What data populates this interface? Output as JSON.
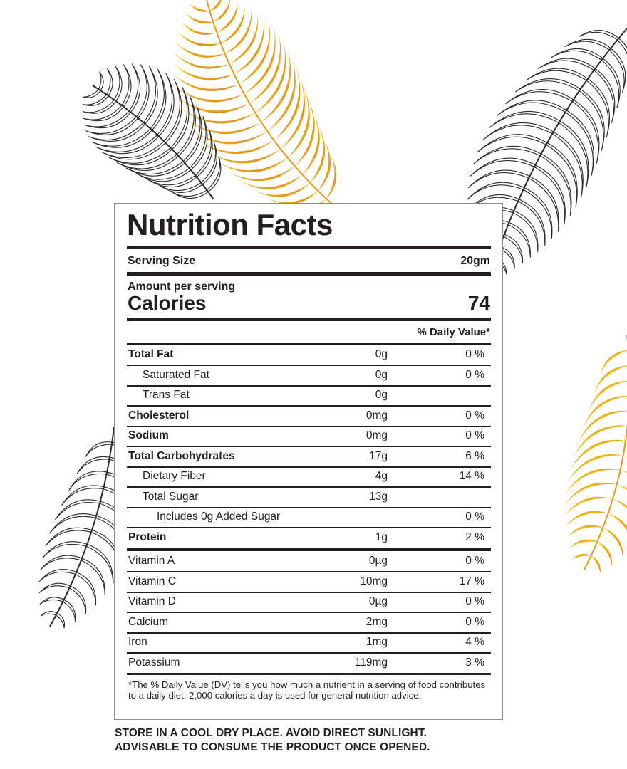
{
  "colors": {
    "ink": "#231f20",
    "gold": "#e8a11a",
    "gold_light": "#f6c814",
    "leaf_black": "#2a2a2a"
  },
  "label": {
    "title": "Nutrition Facts",
    "serving_size_label": "Serving Size",
    "serving_size_value": "20gm",
    "amount_per_serving": "Amount per serving",
    "calories_label": "Calories",
    "calories_value": "74",
    "daily_value_header": "% Daily Value*",
    "rows": [
      {
        "name": "Total Fat",
        "amount": "0g",
        "dv": "0 %",
        "bold": true,
        "indent": 0
      },
      {
        "name": "Saturated Fat",
        "amount": "0g",
        "dv": "0 %",
        "bold": false,
        "indent": 1
      },
      {
        "name": "Trans Fat",
        "amount": "0g",
        "dv": "",
        "bold": false,
        "indent": 1
      },
      {
        "name": "Cholesterol",
        "amount": "0mg",
        "dv": "0 %",
        "bold": true,
        "indent": 0
      },
      {
        "name": "Sodium",
        "amount": "0mg",
        "dv": "0 %",
        "bold": true,
        "indent": 0
      },
      {
        "name": "Total Carbohydrates",
        "amount": "17g",
        "dv": "6 %",
        "bold": true,
        "indent": 0
      },
      {
        "name": "Dietary Fiber",
        "amount": "4g",
        "dv": "14 %",
        "bold": false,
        "indent": 1
      },
      {
        "name": "Total Sugar",
        "amount": "13g",
        "dv": "",
        "bold": false,
        "indent": 1
      },
      {
        "name": "Includes 0g Added Sugar",
        "amount": "",
        "dv": "0 %",
        "bold": false,
        "indent": 2
      },
      {
        "name": "Protein",
        "amount": "1g",
        "dv": "2 %",
        "bold": true,
        "indent": 0
      },
      {
        "name": "Vitamin A",
        "amount": "0µg",
        "dv": "0 %",
        "bold": false,
        "indent": 0
      },
      {
        "name": "Vitamin C",
        "amount": "10mg",
        "dv": "17 %",
        "bold": false,
        "indent": 0
      },
      {
        "name": "Vitamin D",
        "amount": "0µg",
        "dv": "0 %",
        "bold": false,
        "indent": 0
      },
      {
        "name": "Calcium",
        "amount": "2mg",
        "dv": "0 %",
        "bold": false,
        "indent": 0
      },
      {
        "name": "Iron",
        "amount": "1mg",
        "dv": "4 %",
        "bold": false,
        "indent": 0
      },
      {
        "name": "Potassium",
        "amount": "119mg",
        "dv": "3 %",
        "bold": false,
        "indent": 0
      }
    ],
    "footnote": "*The % Daily Value (DV) tells you how much a nutrient in a serving of food contributes to a daily diet. 2,000 calories a day is used for general nutrition advice."
  },
  "storage": {
    "line1": "STORE IN A COOL DRY PLACE. AVOID DIRECT SUNLIGHT.",
    "line2": "ADVISABLE TO CONSUME THE PRODUCT ONCE OPENED."
  }
}
